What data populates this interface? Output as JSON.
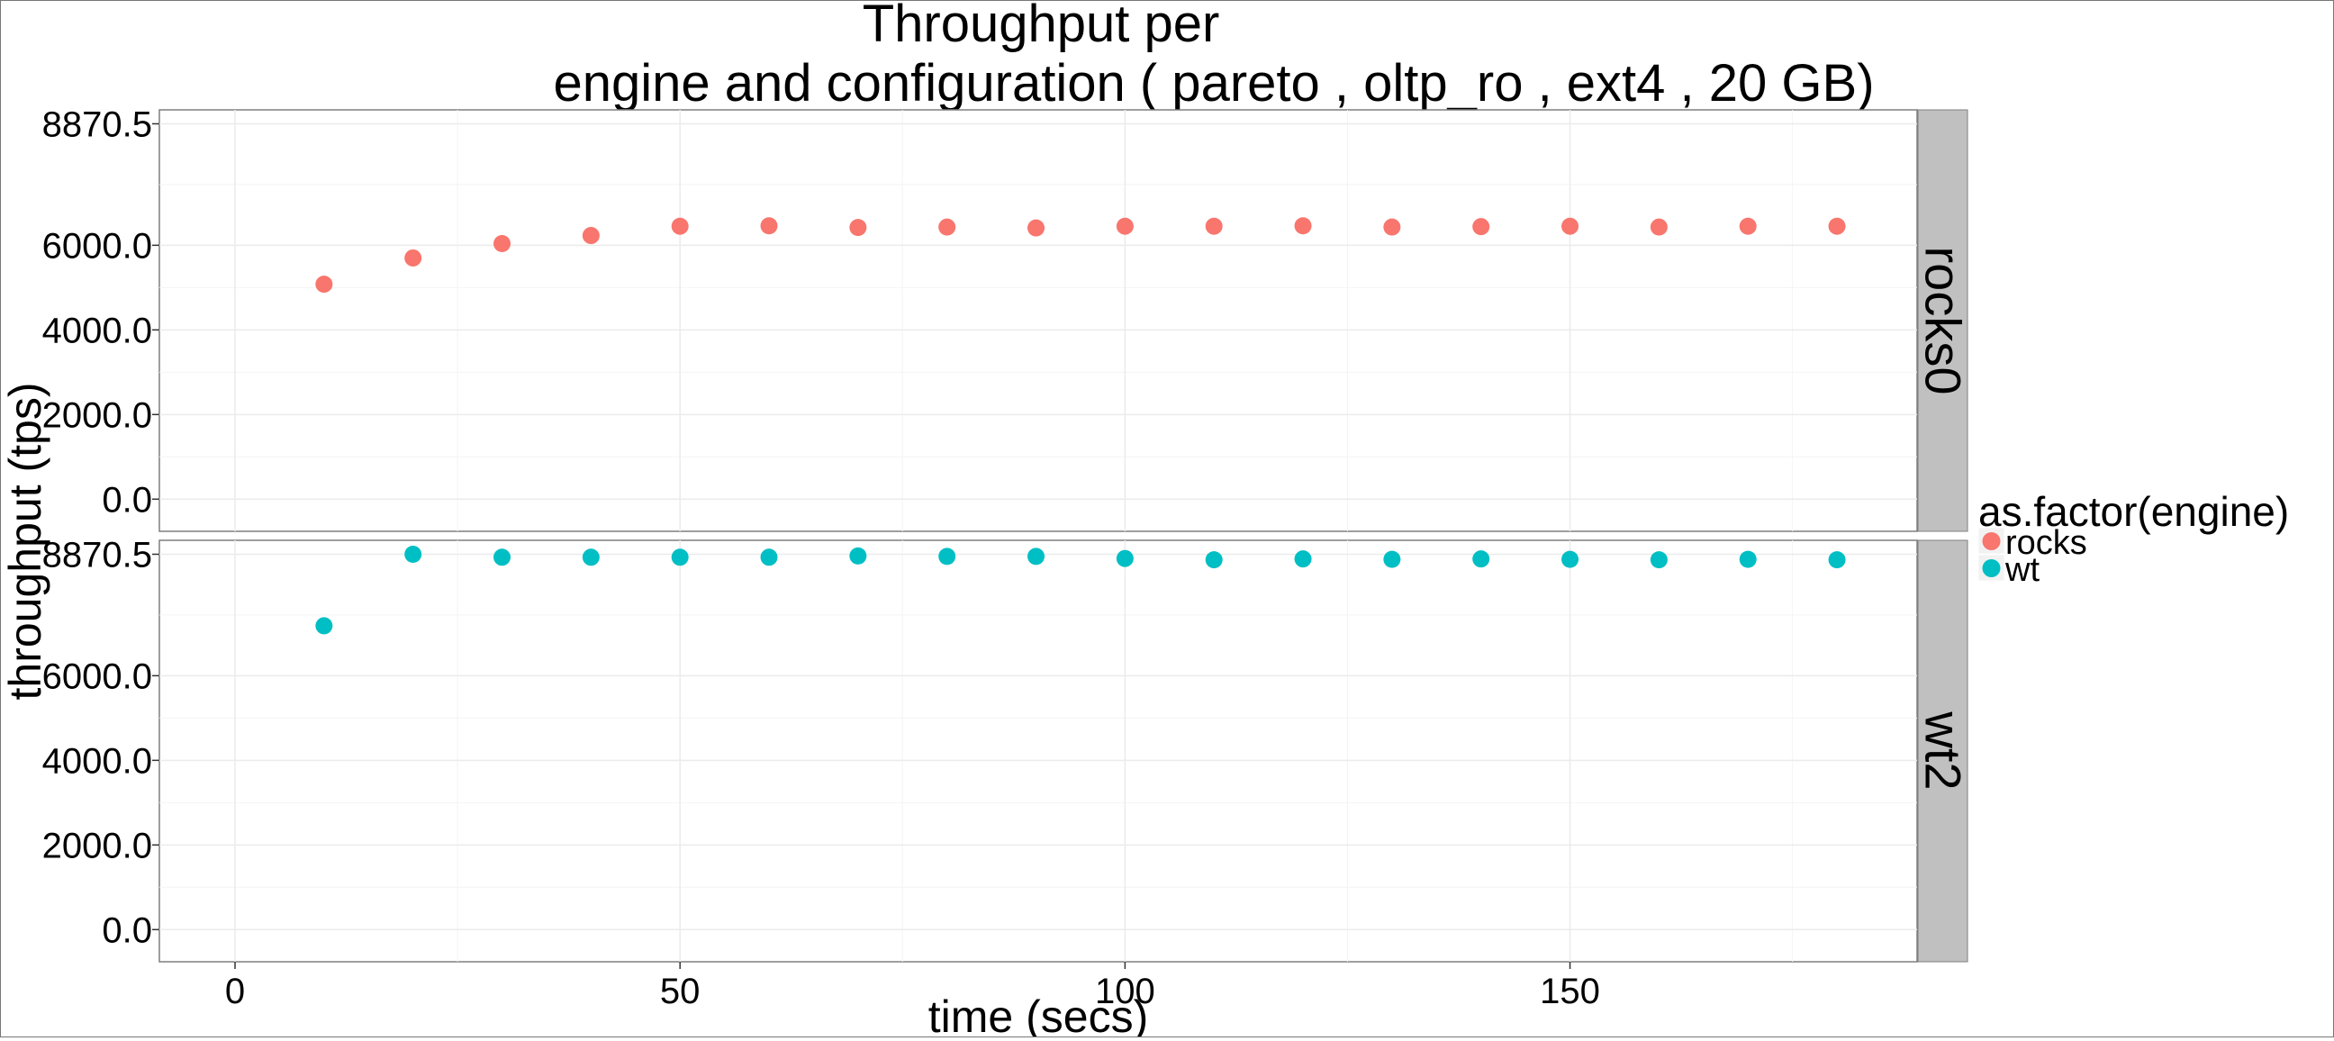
{
  "chart_data": {
    "type": "scatter",
    "title_lines": [
      "Throughput per",
      "engine and configuration ( pareto , oltp_ro , ext4 ,  20 GB)"
    ],
    "xlabel": "time (secs)",
    "ylabel": "throughput (tps)",
    "xlim": [
      -8.5,
      189
    ],
    "ylim": [
      -760,
      9200
    ],
    "x_ticks": [
      0,
      50,
      100,
      150
    ],
    "x_tick_labels": [
      "0",
      "50",
      "100",
      "150"
    ],
    "y_ticks": [
      0,
      2000,
      4000,
      6000,
      8870.5
    ],
    "y_tick_labels": [
      "0.0",
      "2000.0",
      "4000.0",
      "6000.0",
      "8870.5"
    ],
    "grid": true,
    "legend": {
      "title": "as.factor(engine)",
      "position": "right",
      "entries": [
        {
          "name": "rocks",
          "color": "#F8766D"
        },
        {
          "name": "wt",
          "color": "#00BFC4"
        }
      ]
    },
    "panels": [
      {
        "strip_label": "rocks0",
        "engine": "rocks",
        "color": "#F8766D",
        "x": [
          10,
          20,
          30,
          40,
          50,
          60,
          70,
          80,
          90,
          100,
          110,
          120,
          130,
          140,
          150,
          160,
          170,
          180
        ],
        "y": [
          5080,
          5700,
          6040,
          6230,
          6450,
          6460,
          6420,
          6430,
          6410,
          6450,
          6450,
          6460,
          6430,
          6440,
          6450,
          6430,
          6450,
          6450
        ]
      },
      {
        "strip_label": "wt2",
        "engine": "wt",
        "color": "#00BFC4",
        "x": [
          10,
          20,
          30,
          40,
          50,
          60,
          70,
          80,
          90,
          100,
          110,
          120,
          130,
          140,
          150,
          160,
          170,
          180
        ],
        "y": [
          7180,
          8870,
          8800,
          8800,
          8800,
          8800,
          8830,
          8820,
          8820,
          8770,
          8740,
          8760,
          8750,
          8760,
          8750,
          8740,
          8750,
          8740
        ]
      }
    ]
  }
}
